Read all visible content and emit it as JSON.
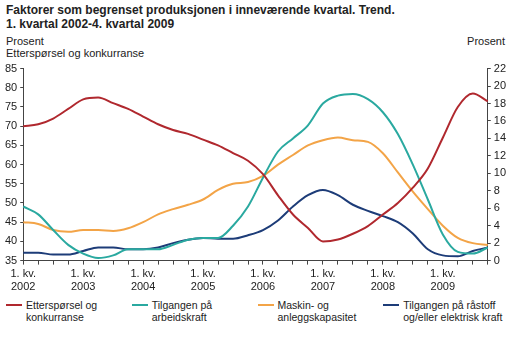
{
  "chart_data": {
    "type": "line",
    "title": "Faktorer som begrenset produksjonen i inneværende kvartal. Trend.",
    "subtitle": "1. kvartal 2002-4. kvartal 2009",
    "ylabel": [
      "Prosent",
      "Etterspørsel og konkurranse"
    ],
    "y2label": "Prosent",
    "categories": [
      "1. kv. 2002",
      null,
      null,
      null,
      "1. kv. 2003",
      null,
      null,
      null,
      "1. kv. 2004",
      null,
      null,
      null,
      "1. kv. 2005",
      null,
      null,
      null,
      "1. kv. 2006",
      null,
      null,
      null,
      "1. kv. 2007",
      null,
      null,
      null,
      "1. kv. 2008",
      null,
      null,
      null,
      "1. kv. 2009",
      null,
      null,
      null
    ],
    "series": [
      {
        "name": "Etterspørsel og konkurranse",
        "color": "#b0282e",
        "values": [
          70,
          70.5,
          72,
          74.5,
          77,
          77.5,
          76,
          74.5,
          72.5,
          70.5,
          69,
          68,
          66.5,
          65,
          63,
          61,
          57.5,
          52,
          47,
          43.5,
          40,
          40.5,
          42,
          44,
          47,
          50,
          54,
          59,
          67,
          75,
          78.5,
          76.5
        ]
      },
      {
        "name": "Tilgangen på arbeidskraft",
        "color": "#2aa9a0",
        "axis": "y2",
        "values": [
          6.2,
          5.3,
          3.5,
          1.8,
          0.8,
          0.3,
          0.6,
          1.3,
          1.3,
          1.3,
          1.8,
          2.4,
          2.6,
          2.6,
          4.0,
          6.2,
          9.5,
          12.5,
          14.0,
          15.5,
          18.0,
          18.9,
          19.1,
          18.5,
          17.0,
          14.5,
          11.0,
          7.0,
          3.0,
          1.0,
          0.8,
          1.5
        ]
      },
      {
        "name": "Maskin- og anleggskapasitet",
        "color": "#f3a447",
        "axis": "y2",
        "values": [
          4.4,
          4.2,
          3.5,
          3.3,
          3.5,
          3.5,
          3.4,
          3.7,
          4.4,
          5.3,
          5.9,
          6.4,
          7.0,
          8.1,
          8.8,
          9.0,
          9.7,
          11.0,
          12.1,
          13.2,
          13.8,
          14.1,
          13.8,
          13.6,
          12.3,
          10.1,
          7.9,
          5.9,
          4.0,
          2.6,
          2.0,
          1.8
        ]
      },
      {
        "name": "Tilgangen på råstoff og/eller elektrisk kraft",
        "color": "#1d3c78",
        "axis": "y2",
        "values": [
          0.9,
          0.9,
          0.7,
          0.7,
          1.1,
          1.5,
          1.5,
          1.3,
          1.3,
          1.5,
          2.0,
          2.4,
          2.6,
          2.5,
          2.5,
          2.9,
          3.5,
          4.6,
          6.2,
          7.5,
          8.1,
          7.5,
          6.4,
          5.7,
          5.1,
          4.4,
          3.1,
          1.3,
          0.6,
          0.5,
          1.1,
          1.5
        ]
      }
    ],
    "ylim": [
      35,
      85
    ],
    "yticks": [
      35,
      40,
      45,
      50,
      55,
      60,
      65,
      70,
      75,
      80,
      85
    ],
    "y2lim": [
      0,
      22
    ],
    "y2ticks": [
      0,
      2,
      4,
      6,
      8,
      10,
      12,
      14,
      16,
      18,
      20,
      22
    ],
    "grid": false,
    "legend": "bottom"
  }
}
